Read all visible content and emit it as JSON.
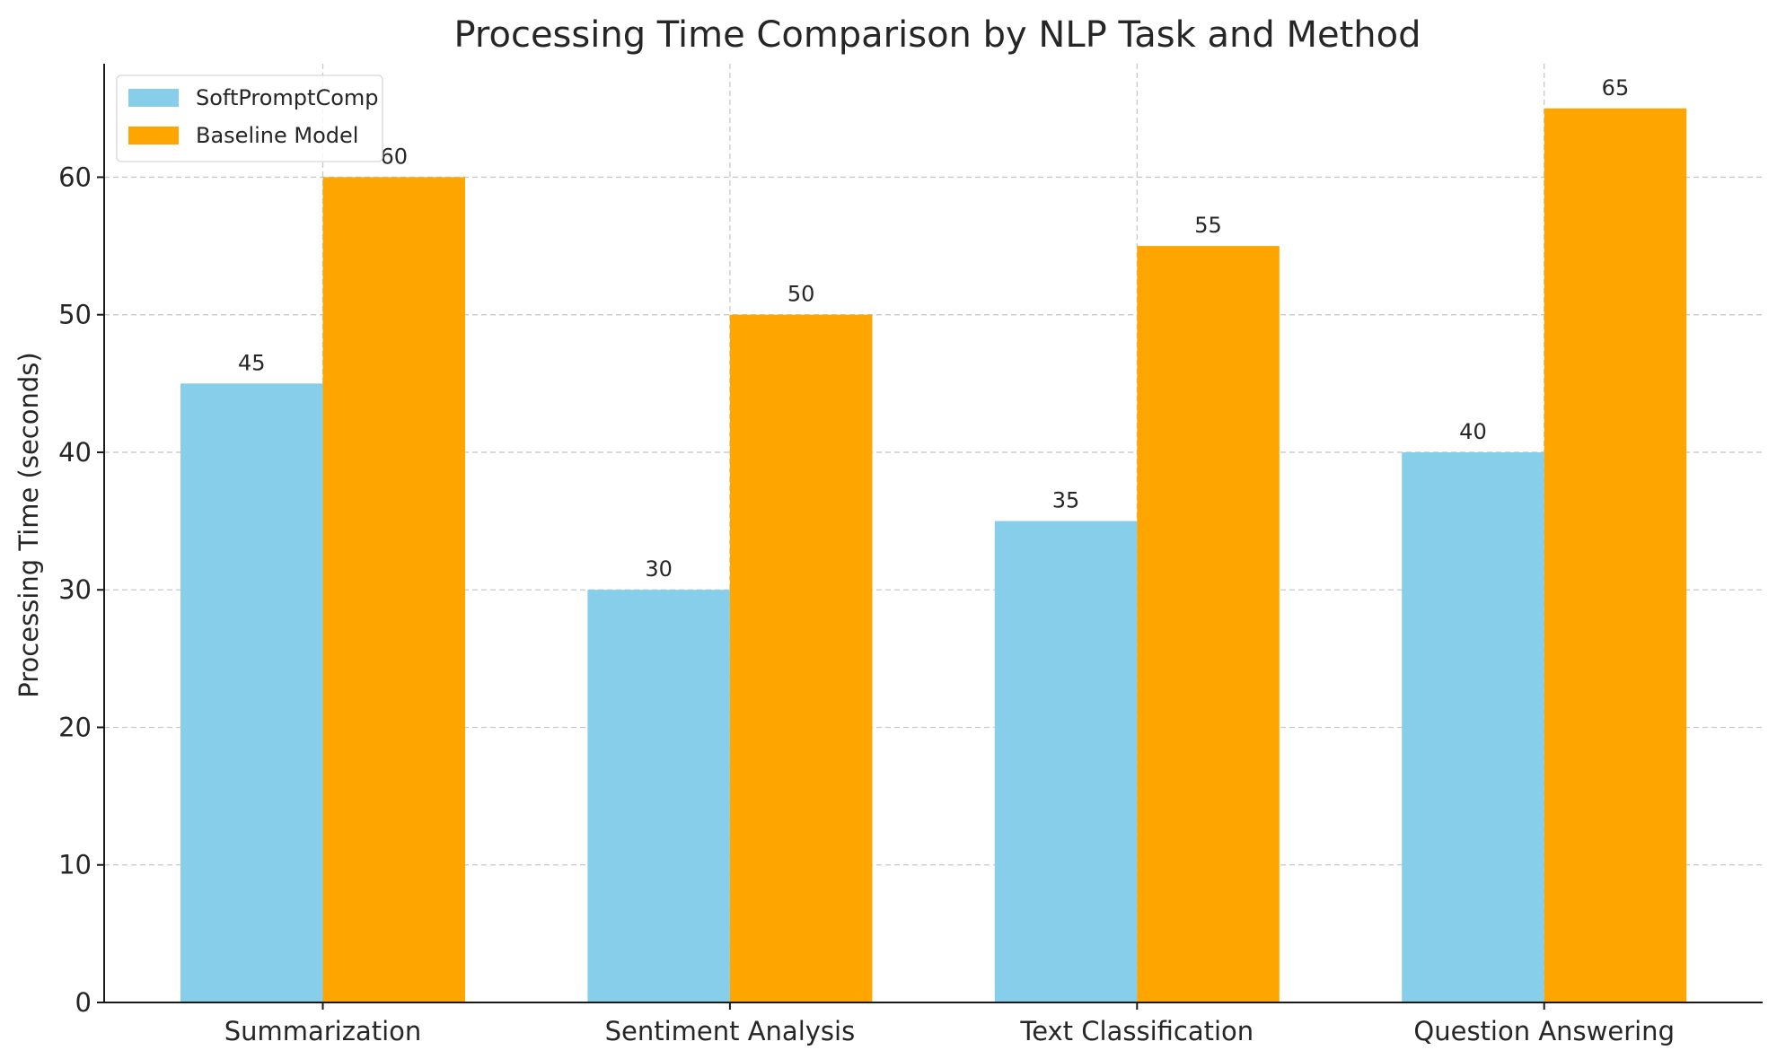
{
  "chart_data": {
    "type": "bar",
    "title": "Processing Time Comparison by NLP Task and Method",
    "xlabel": "",
    "ylabel": "Processing Time (seconds)",
    "categories": [
      "Summarization",
      "Sentiment Analysis",
      "Text Classification",
      "Question Answering"
    ],
    "series": [
      {
        "name": "SoftPromptComp",
        "color": "#87CEEB",
        "values": [
          45,
          30,
          35,
          40
        ]
      },
      {
        "name": "Baseline Model",
        "color": "#FFA500",
        "values": [
          60,
          50,
          55,
          65
        ]
      }
    ],
    "yticks": [
      0,
      10,
      20,
      30,
      40,
      50,
      60
    ],
    "ylim": [
      0,
      68.25
    ],
    "grid": true,
    "legend_position": "top-left"
  }
}
